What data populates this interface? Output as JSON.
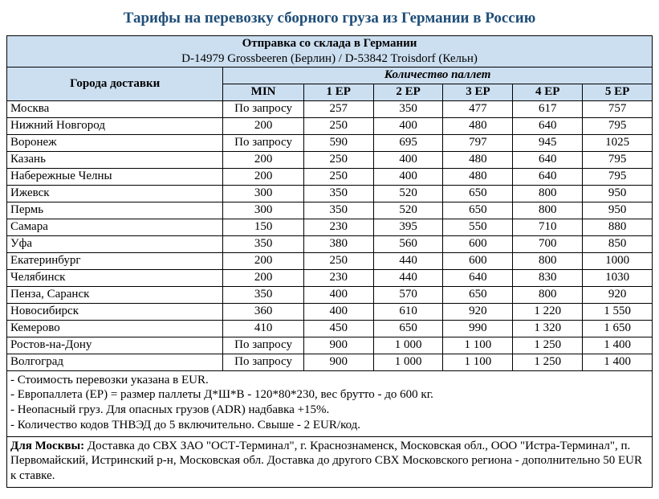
{
  "title": "Тарифы на перевозку сборного груза из Германии в Россию",
  "header": {
    "warehouse_title": "Отправка со склада в Германии",
    "warehouse_sub": "D-14979 Grossbeeren (Берлин) / D-53842 Troisdorf (Кельн)",
    "city_col": "Города доставки",
    "pallet_count": "Количество паллет",
    "cols": [
      "MIN",
      "1 EP",
      "2 EP",
      "3 EP",
      "4 EP",
      "5 EP"
    ]
  },
  "rows": [
    {
      "city": "Москва",
      "min": "По запросу",
      "v": [
        "257",
        "350",
        "477",
        "617",
        "757"
      ]
    },
    {
      "city": "Нижний Новгород",
      "min": "200",
      "v": [
        "250",
        "400",
        "480",
        "640",
        "795"
      ]
    },
    {
      "city": "Воронеж",
      "min": "По запросу",
      "v": [
        "590",
        "695",
        "797",
        "945",
        "1025"
      ]
    },
    {
      "city": "Казань",
      "min": "200",
      "v": [
        "250",
        "400",
        "480",
        "640",
        "795"
      ]
    },
    {
      "city": "Набережные Челны",
      "min": "200",
      "v": [
        "250",
        "400",
        "480",
        "640",
        "795"
      ]
    },
    {
      "city": "Ижевск",
      "min": "300",
      "v": [
        "350",
        "520",
        "650",
        "800",
        "950"
      ]
    },
    {
      "city": "Пермь",
      "min": "300",
      "v": [
        "350",
        "520",
        "650",
        "800",
        "950"
      ]
    },
    {
      "city": "Самара",
      "min": "150",
      "v": [
        "230",
        "395",
        "550",
        "710",
        "880"
      ]
    },
    {
      "city": "Уфа",
      "min": "350",
      "v": [
        "380",
        "560",
        "600",
        "700",
        "850"
      ]
    },
    {
      "city": "Екатеринбург",
      "min": "200",
      "v": [
        "250",
        "440",
        "600",
        "800",
        "1000"
      ]
    },
    {
      "city": "Челябинск",
      "min": "200",
      "v": [
        "230",
        "440",
        "640",
        "830",
        "1030"
      ]
    },
    {
      "city": "Пенза, Саранск",
      "min": "350",
      "v": [
        "400",
        "570",
        "650",
        "800",
        "920"
      ]
    },
    {
      "city": "Новосибирск",
      "min": "360",
      "v": [
        "400",
        "610",
        "920",
        "1 220",
        "1 550"
      ]
    },
    {
      "city": "Кемерово",
      "min": "410",
      "v": [
        "450",
        "650",
        "990",
        "1 320",
        "1 650"
      ]
    },
    {
      "city": "Ростов-на-Дону",
      "min": "По запросу",
      "v": [
        "900",
        "1 000",
        "1 100",
        "1 250",
        "1 400"
      ]
    },
    {
      "city": "Волгоград",
      "min": "По запросу",
      "v": [
        "900",
        "1 000",
        "1 100",
        "1 250",
        "1 400"
      ]
    }
  ],
  "notes": [
    "- Стоимость перевозки указана в EUR.",
    "- Европаллета (EP) = размер паллеты Д*Ш*В - 120*80*230, вес брутто - до 600 кг.",
    "- Неопасный груз. Для опасных грузов (ADR) надбавка +15%.",
    "- Количество кодов ТНВЭД до 5 включительно. Свыше - 2 EUR/код."
  ],
  "moscow_note": {
    "lead": "Для Москвы: ",
    "body": "Доставка до СВХ  ЗАО \"ОСТ-Терминал\", г. Краснознаменск, Московская обл., ООО \"Истра-Терминал\", п. Первомайский,  Истринский р-н, Московская обл. Доставка до другого СВХ Московского региона - дополнительно 50 EUR к ставке."
  },
  "style": {
    "title_color": "#1f4e79",
    "header_bg": "#ccdff1",
    "border_color": "#000000",
    "font_family": "Times New Roman",
    "title_fontsize_pt": 14,
    "body_fontsize_pt": 11
  }
}
